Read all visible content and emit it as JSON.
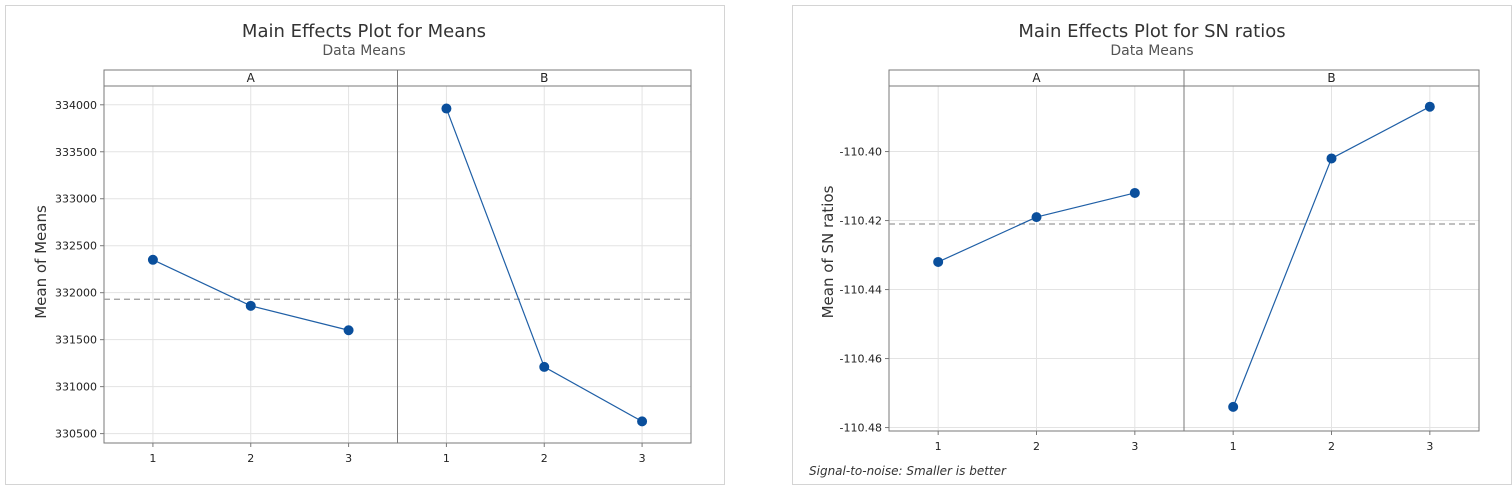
{
  "chart_data": [
    {
      "type": "line",
      "title": "Main Effects Plot for Means",
      "subtitle": "Data Means",
      "ylabel": "Mean of Means",
      "ylim": [
        330400,
        334200
      ],
      "yticks": [
        330500,
        331000,
        331500,
        332000,
        332500,
        333000,
        333500,
        334000
      ],
      "reference_line": 331930,
      "panels": [
        {
          "label": "A",
          "x": [
            "1",
            "2",
            "3"
          ],
          "values": [
            332350,
            331860,
            331600
          ]
        },
        {
          "label": "B",
          "x": [
            "1",
            "2",
            "3"
          ],
          "values": [
            333960,
            331210,
            330630
          ]
        }
      ],
      "footnote": ""
    },
    {
      "type": "line",
      "title": "Main Effects Plot for SN ratios",
      "subtitle": "Data Means",
      "ylabel": "Mean of SN ratios",
      "ylim": [
        -110.481,
        -110.381
      ],
      "yticks": [
        -110.48,
        -110.46,
        -110.44,
        -110.42,
        -110.4
      ],
      "reference_line": -110.421,
      "panels": [
        {
          "label": "A",
          "x": [
            "1",
            "2",
            "3"
          ],
          "values": [
            -110.432,
            -110.419,
            -110.412
          ]
        },
        {
          "label": "B",
          "x": [
            "1",
            "2",
            "3"
          ],
          "values": [
            -110.474,
            -110.402,
            -110.387
          ]
        }
      ],
      "footnote": "Signal-to-noise: Smaller is better"
    }
  ],
  "style": {
    "line_color": "#1f5fa6",
    "marker_color": "#0a4f9c",
    "grid_color": "#e3e3e3",
    "ref_line_color": "#9a9a9a",
    "frame_color": "#7a7a7a"
  }
}
